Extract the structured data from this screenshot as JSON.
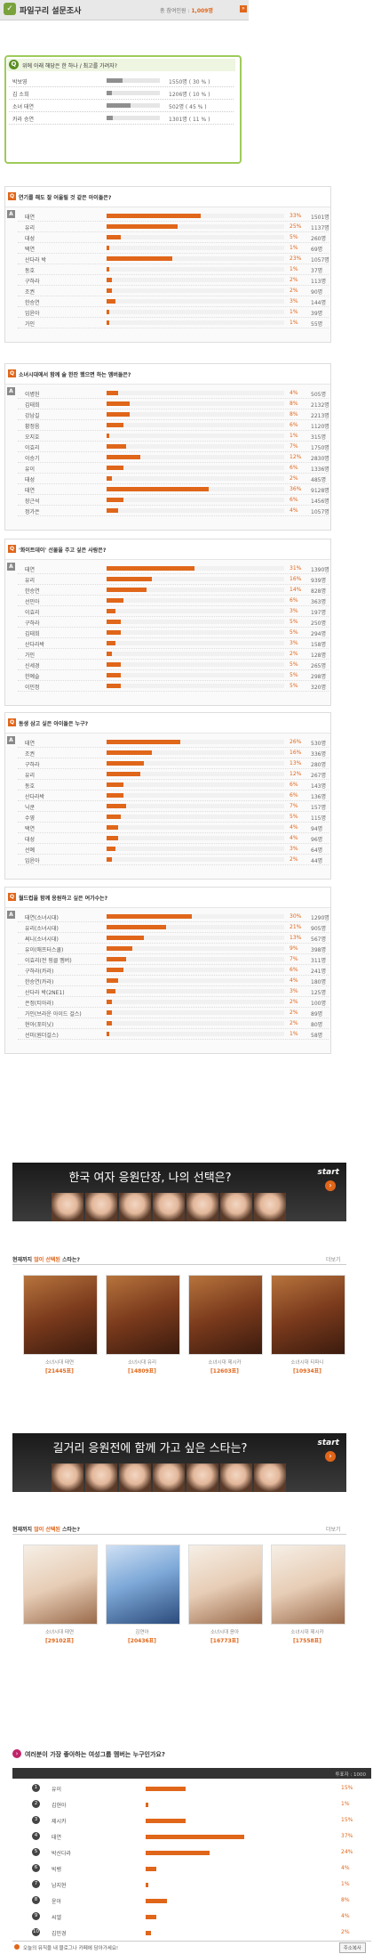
{
  "header": {
    "title": "파일구리 설문조사",
    "count_label": "총 참여인원 :",
    "count_value": "1,009명",
    "more": "»"
  },
  "quick_poll": {
    "question": "위에 아래 해당은 한 하나 / 최고를 가려자?",
    "items": [
      {
        "name": "박보영",
        "value": "1550명 ( 30 % )",
        "fraction": 0.3
      },
      {
        "name": "김 소희",
        "value": "1206명 ( 10 % )",
        "fraction": 0.1
      },
      {
        "name": "소녀 태연",
        "value": "502명 ( 45 % )",
        "fraction": 0.45
      },
      {
        "name": "카라 승연",
        "value": "1301명 ( 11 % )",
        "fraction": 0.11
      }
    ]
  },
  "polls": [
    {
      "question": "연기를 해도 잘 어울릴 것 같은 아이돌은?",
      "rows": [
        {
          "name": "태연",
          "pct": "33%",
          "count": "1501명",
          "fraction": 0.33
        },
        {
          "name": "유리",
          "pct": "25%",
          "count": "1137명",
          "fraction": 0.25
        },
        {
          "name": "대성",
          "pct": "5%",
          "count": "260명",
          "fraction": 0.05
        },
        {
          "name": "택연",
          "pct": "1%",
          "count": "69명",
          "fraction": 0.01
        },
        {
          "name": "산다라 박",
          "pct": "23%",
          "count": "1057명",
          "fraction": 0.23
        },
        {
          "name": "동호",
          "pct": "1%",
          "count": "37명",
          "fraction": 0.01
        },
        {
          "name": "구하라",
          "pct": "2%",
          "count": "113명",
          "fraction": 0.02
        },
        {
          "name": "조권",
          "pct": "2%",
          "count": "90명",
          "fraction": 0.02
        },
        {
          "name": "한승연",
          "pct": "3%",
          "count": "144명",
          "fraction": 0.03
        },
        {
          "name": "임윤아",
          "pct": "1%",
          "count": "39명",
          "fraction": 0.01
        },
        {
          "name": "가인",
          "pct": "1%",
          "count": "55명",
          "fraction": 0.01
        }
      ]
    },
    {
      "question": "소녀시대에서 함께 술 한잔 했으면 하는 멤버들은?",
      "rows": [
        {
          "name": "이병헌",
          "pct": "4%",
          "count": "505명",
          "fraction": 0.04
        },
        {
          "name": "김태희",
          "pct": "8%",
          "count": "2132명",
          "fraction": 0.08
        },
        {
          "name": "강남길",
          "pct": "8%",
          "count": "2213명",
          "fraction": 0.08
        },
        {
          "name": "황정음",
          "pct": "6%",
          "count": "1120명",
          "fraction": 0.06
        },
        {
          "name": "오지호",
          "pct": "1%",
          "count": "315명",
          "fraction": 0.01
        },
        {
          "name": "이효리",
          "pct": "7%",
          "count": "1750명",
          "fraction": 0.07
        },
        {
          "name": "이승기",
          "pct": "12%",
          "count": "2830명",
          "fraction": 0.12
        },
        {
          "name": "유이",
          "pct": "6%",
          "count": "1336명",
          "fraction": 0.06
        },
        {
          "name": "태성",
          "pct": "2%",
          "count": "485명",
          "fraction": 0.02
        },
        {
          "name": "태연",
          "pct": "36%",
          "count": "9128명",
          "fraction": 0.36
        },
        {
          "name": "장근석",
          "pct": "6%",
          "count": "1456명",
          "fraction": 0.06
        },
        {
          "name": "정가은",
          "pct": "4%",
          "count": "1057명",
          "fraction": 0.04
        }
      ]
    },
    {
      "question": "'화이트데이' 선물을 주고 싶은 사람은?",
      "rows": [
        {
          "name": "태연",
          "pct": "31%",
          "count": "1390명",
          "fraction": 0.31
        },
        {
          "name": "유리",
          "pct": "16%",
          "count": "939명",
          "fraction": 0.16
        },
        {
          "name": "한승연",
          "pct": "14%",
          "count": "828명",
          "fraction": 0.14
        },
        {
          "name": "선민아",
          "pct": "6%",
          "count": "363명",
          "fraction": 0.06
        },
        {
          "name": "이효리",
          "pct": "3%",
          "count": "197명",
          "fraction": 0.03
        },
        {
          "name": "구하라",
          "pct": "5%",
          "count": "250명",
          "fraction": 0.05
        },
        {
          "name": "김태희",
          "pct": "5%",
          "count": "294명",
          "fraction": 0.05
        },
        {
          "name": "산다라박",
          "pct": "3%",
          "count": "158명",
          "fraction": 0.03
        },
        {
          "name": "가인",
          "pct": "2%",
          "count": "128명",
          "fraction": 0.02
        },
        {
          "name": "신세경",
          "pct": "5%",
          "count": "265명",
          "fraction": 0.05
        },
        {
          "name": "한예슬",
          "pct": "5%",
          "count": "298명",
          "fraction": 0.05
        },
        {
          "name": "이민정",
          "pct": "5%",
          "count": "320명",
          "fraction": 0.05
        }
      ]
    },
    {
      "question": "동생 삼고 싶은 아이돌은 누구?",
      "rows": [
        {
          "name": "태연",
          "pct": "26%",
          "count": "530명",
          "fraction": 0.26
        },
        {
          "name": "조권",
          "pct": "16%",
          "count": "336명",
          "fraction": 0.16
        },
        {
          "name": "구하라",
          "pct": "13%",
          "count": "280명",
          "fraction": 0.13
        },
        {
          "name": "유리",
          "pct": "12%",
          "count": "267명",
          "fraction": 0.12
        },
        {
          "name": "동호",
          "pct": "6%",
          "count": "143명",
          "fraction": 0.06
        },
        {
          "name": "산다라박",
          "pct": "6%",
          "count": "136명",
          "fraction": 0.06
        },
        {
          "name": "닉쿤",
          "pct": "7%",
          "count": "157명",
          "fraction": 0.07
        },
        {
          "name": "수영",
          "pct": "5%",
          "count": "115명",
          "fraction": 0.05
        },
        {
          "name": "택연",
          "pct": "4%",
          "count": "94명",
          "fraction": 0.04
        },
        {
          "name": "대성",
          "pct": "4%",
          "count": "96명",
          "fraction": 0.04
        },
        {
          "name": "선예",
          "pct": "3%",
          "count": "64명",
          "fraction": 0.03
        },
        {
          "name": "임윤아",
          "pct": "2%",
          "count": "44명",
          "fraction": 0.02
        }
      ]
    },
    {
      "question": "월드컵을 함께 응원하고 싶은 여가수는?",
      "rows": [
        {
          "name": "태연(소녀시대)",
          "pct": "30%",
          "count": "1290명",
          "fraction": 0.3
        },
        {
          "name": "유리(소녀시대)",
          "pct": "21%",
          "count": "905명",
          "fraction": 0.21
        },
        {
          "name": "써니(소녀시대)",
          "pct": "13%",
          "count": "567명",
          "fraction": 0.13
        },
        {
          "name": "유이(애프터스쿨)",
          "pct": "9%",
          "count": "398명",
          "fraction": 0.09
        },
        {
          "name": "이효리(전 핑클 멤버)",
          "pct": "7%",
          "count": "311명",
          "fraction": 0.07
        },
        {
          "name": "구하라(카라)",
          "pct": "6%",
          "count": "241명",
          "fraction": 0.06
        },
        {
          "name": "한승연(카라)",
          "pct": "4%",
          "count": "180명",
          "fraction": 0.04
        },
        {
          "name": "산다라 박(2NE1)",
          "pct": "3%",
          "count": "125명",
          "fraction": 0.03
        },
        {
          "name": "은정(티아라)",
          "pct": "2%",
          "count": "100명",
          "fraction": 0.02
        },
        {
          "name": "가인(브라운 아이드 걸스)",
          "pct": "2%",
          "count": "89명",
          "fraction": 0.02
        },
        {
          "name": "현아(포미닛)",
          "pct": "2%",
          "count": "80명",
          "fraction": 0.02
        },
        {
          "name": "선미(원더걸스)",
          "pct": "1%",
          "count": "58명",
          "fraction": 0.01
        }
      ]
    }
  ],
  "banner1": {
    "title": "한국 여자 응원단장, 나의 선택은?",
    "start": "start",
    "subhead_prefix": "현재까지",
    "subhead_accent": "많이 선택된",
    "subhead_suffix": "스타는?",
    "more": "더보기",
    "cards": [
      {
        "name": "소녀시대 태연",
        "count": "[21445표]"
      },
      {
        "name": "소녀시대 유리",
        "count": "[14809표]"
      },
      {
        "name": "소녀시대 제시카",
        "count": "[12603표]"
      },
      {
        "name": "소녀시대 티파니",
        "count": "[10934표]"
      }
    ]
  },
  "banner2": {
    "title": "길거리 응원전에 함께 가고 싶은 스타는?",
    "start": "start",
    "subhead_prefix": "현재까지",
    "subhead_accent": "많이 선택된",
    "subhead_suffix": "스타는?",
    "more": "더보기",
    "cards": [
      {
        "name": "소녀시대 태연",
        "count": "[29102표]"
      },
      {
        "name": "김연아",
        "count": "[20436표]"
      },
      {
        "name": "소녀시대 윤아",
        "count": "[16773표]"
      },
      {
        "name": "소녀시대 제시카",
        "count": "[17558표]"
      }
    ]
  },
  "ranking": {
    "title": "여러분이 가장 좋아하는 여성그룹 멤버는 누구인가요?",
    "head_right": "투표자 : 1000",
    "rows": [
      {
        "no": "1",
        "name": "유이",
        "pct": "15%",
        "fraction": 0.15
      },
      {
        "no": "2",
        "name": "김현아",
        "pct": "1%",
        "fraction": 0.01
      },
      {
        "no": "3",
        "name": "제시카",
        "pct": "15%",
        "fraction": 0.15
      },
      {
        "no": "4",
        "name": "태연",
        "pct": "37%",
        "fraction": 0.37
      },
      {
        "no": "5",
        "name": "박산다라",
        "pct": "24%",
        "fraction": 0.24
      },
      {
        "no": "6",
        "name": "빅뱅",
        "pct": "4%",
        "fraction": 0.04
      },
      {
        "no": "7",
        "name": "남지현",
        "pct": "1%",
        "fraction": 0.01
      },
      {
        "no": "8",
        "name": "윤아",
        "pct": "8%",
        "fraction": 0.08
      },
      {
        "no": "9",
        "name": "씨엘",
        "pct": "4%",
        "fraction": 0.04
      },
      {
        "no": "10",
        "name": "김민경",
        "pct": "2%",
        "fraction": 0.02
      }
    ],
    "footer_text": "오늘의 뮤직을 내 블로그나 카페에 담아가세요!",
    "footer_button": "주소복사"
  },
  "colors": {
    "accent": "#e0661a",
    "green": "#9fcb5a",
    "gray_bar": "#8f8f8f"
  }
}
